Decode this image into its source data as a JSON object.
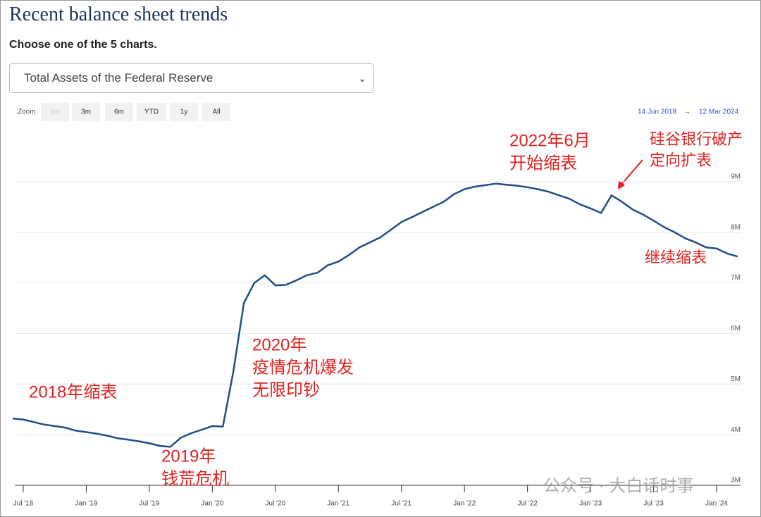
{
  "header": {
    "title": "Recent balance sheet trends",
    "prompt": "Choose one of the 5 charts.",
    "select": "Total Assets of the Federal Reserve"
  },
  "zoom": {
    "label": "Zoom",
    "buttons": [
      "1m",
      "3m",
      "6m",
      "YTD",
      "1y",
      "All"
    ],
    "from": "14 Jun 2018",
    "arrow": "→",
    "to": "12 Mar 2024"
  },
  "watermark": "公众号 · 大白话时事",
  "chart_data": {
    "type": "line",
    "x": [
      "2018-06",
      "2018-07",
      "2018-08",
      "2018-09",
      "2018-10",
      "2018-11",
      "2018-12",
      "2019-01",
      "2019-02",
      "2019-03",
      "2019-04",
      "2019-05",
      "2019-06",
      "2019-07",
      "2019-08",
      "2019-09",
      "2019-10",
      "2019-11",
      "2019-12",
      "2020-01",
      "2020-02",
      "2020-03",
      "2020-04",
      "2020-05",
      "2020-06",
      "2020-07",
      "2020-08",
      "2020-09",
      "2020-10",
      "2020-11",
      "2020-12",
      "2021-01",
      "2021-02",
      "2021-03",
      "2021-04",
      "2021-05",
      "2021-06",
      "2021-07",
      "2021-08",
      "2021-09",
      "2021-10",
      "2021-11",
      "2021-12",
      "2022-01",
      "2022-02",
      "2022-03",
      "2022-04",
      "2022-05",
      "2022-06",
      "2022-07",
      "2022-08",
      "2022-09",
      "2022-10",
      "2022-11",
      "2022-12",
      "2023-01",
      "2023-02",
      "2023-03",
      "2023-04",
      "2023-05",
      "2023-06",
      "2023-07",
      "2023-08",
      "2023-09",
      "2023-10",
      "2023-11",
      "2023-12",
      "2024-01",
      "2024-02",
      "2024-03"
    ],
    "series": [
      {
        "name": "Total Assets of the Federal Reserve",
        "color": "#1f4e87",
        "values": [
          4320000,
          4300000,
          4250000,
          4200000,
          4170000,
          4140000,
          4080000,
          4050000,
          4020000,
          3980000,
          3930000,
          3900000,
          3870000,
          3830000,
          3780000,
          3760000,
          3940000,
          4030000,
          4100000,
          4170000,
          4160000,
          5250000,
          6600000,
          7000000,
          7150000,
          6950000,
          6960000,
          7050000,
          7150000,
          7200000,
          7350000,
          7420000,
          7550000,
          7700000,
          7800000,
          7900000,
          8050000,
          8200000,
          8300000,
          8400000,
          8500000,
          8600000,
          8750000,
          8850000,
          8900000,
          8930000,
          8960000,
          8940000,
          8920000,
          8890000,
          8850000,
          8800000,
          8730000,
          8660000,
          8550000,
          8470000,
          8380000,
          8730000,
          8600000,
          8450000,
          8350000,
          8230000,
          8100000,
          8000000,
          7880000,
          7800000,
          7700000,
          7680000,
          7580000,
          7520000
        ]
      }
    ],
    "xticks": [
      {
        "value": "2018-07",
        "label": "Jul '18"
      },
      {
        "value": "2019-01",
        "label": "Jan '19"
      },
      {
        "value": "2019-07",
        "label": "Jul '19"
      },
      {
        "value": "2020-01",
        "label": "Jan '20"
      },
      {
        "value": "2020-07",
        "label": "Jul '20"
      },
      {
        "value": "2021-01",
        "label": "Jan '21"
      },
      {
        "value": "2021-07",
        "label": "Jul '21"
      },
      {
        "value": "2022-01",
        "label": "Jan '22"
      },
      {
        "value": "2022-07",
        "label": "Jul '22"
      },
      {
        "value": "2023-01",
        "label": "Jan '23"
      },
      {
        "value": "2023-07",
        "label": "Jul '23"
      },
      {
        "value": "2024-01",
        "label": "Jan '24"
      }
    ],
    "ylim": [
      3000000,
      10000000
    ],
    "yticks": [
      {
        "value": 3000000,
        "label": "3M"
      },
      {
        "value": 4000000,
        "label": "4M"
      },
      {
        "value": 5000000,
        "label": "5M"
      },
      {
        "value": 6000000,
        "label": "6M"
      },
      {
        "value": 7000000,
        "label": "7M"
      },
      {
        "value": 8000000,
        "label": "8M"
      },
      {
        "value": 9000000,
        "label": "9M"
      }
    ],
    "grid": true,
    "annotations": [
      {
        "lines": [
          "2018年缩表"
        ]
      },
      {
        "lines": [
          "2019年",
          "钱荒危机"
        ]
      },
      {
        "lines": [
          "2020年",
          "疫情危机爆发",
          "无限印钞"
        ]
      },
      {
        "lines": [
          "2022年6月",
          "开始缩表"
        ]
      },
      {
        "lines": [
          "硅谷银行破产",
          "定向扩表"
        ]
      },
      {
        "lines": [
          "继续缩表"
        ]
      }
    ]
  }
}
